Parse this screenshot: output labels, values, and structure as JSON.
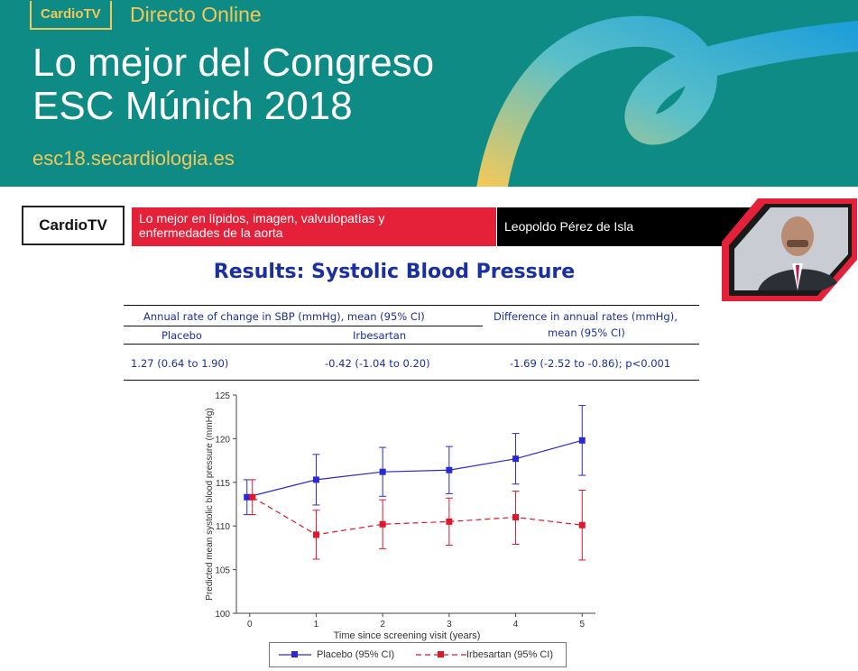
{
  "banner": {
    "badge": "CardioTV",
    "subtitle": "Directo Online",
    "title_line1": "Lo mejor del Congreso",
    "title_line2": "ESC Múnich 2018",
    "url": "esc18.secardiologia.es"
  },
  "slide_header": {
    "logo": "CardioTV",
    "topic_line1": "Lo mejor en lípidos, imagen, valvulopatías y",
    "topic_line2": "enfermedades de la aorta",
    "speaker": "Leopoldo Pérez de Isla"
  },
  "slide": {
    "title": "Results: Systolic Blood Pressure"
  },
  "results_table": {
    "header_group": "Annual rate of change in SBP (mmHg), mean (95% CI)",
    "header_diff_line1": "Difference in annual rates (mmHg),",
    "header_diff_line2": "mean (95% CI)",
    "col_placebo": "Placebo",
    "col_irbesartan": "Irbesartan",
    "val_placebo": "1.27 (0.64 to 1.90)",
    "val_irbesartan": "-0.42 (-1.04 to 0.20)",
    "val_diff": "-1.69 (-2.52 to -0.86);  p<0.001"
  },
  "chart_data": {
    "type": "line",
    "xlabel": "Time since screening visit (years)",
    "ylabel": "Predicted mean systolic blood pressure (mmHg)",
    "x_ticks": [
      "0",
      "1",
      "2",
      "3",
      "4",
      "5"
    ],
    "y_ticks": [
      "100",
      "105",
      "110",
      "115",
      "120",
      "125"
    ],
    "ylim": [
      100,
      125
    ],
    "xlim": [
      -0.2,
      5.2
    ],
    "series": [
      {
        "name": "Placebo (95% CI)",
        "color": "#2a2ad0",
        "dashed": false,
        "x": [
          0,
          1,
          2,
          3,
          4,
          5
        ],
        "y": [
          113.3,
          115.3,
          116.2,
          116.4,
          117.7,
          119.8
        ],
        "lower": [
          111.3,
          112.4,
          113.4,
          113.7,
          114.8,
          115.8
        ],
        "upper": [
          115.3,
          118.2,
          119.0,
          119.1,
          120.6,
          123.8
        ]
      },
      {
        "name": "Irbesartan (95% CI)",
        "color": "#e0162b",
        "dashed": true,
        "x": [
          0,
          1,
          2,
          3,
          4,
          5
        ],
        "y": [
          113.3,
          109.0,
          110.2,
          110.5,
          111.0,
          110.1
        ],
        "lower": [
          111.3,
          106.2,
          107.4,
          107.8,
          107.9,
          106.1
        ],
        "upper": [
          115.3,
          111.8,
          113.0,
          113.2,
          114.0,
          114.1
        ]
      }
    ],
    "legend_position": "bottom"
  }
}
